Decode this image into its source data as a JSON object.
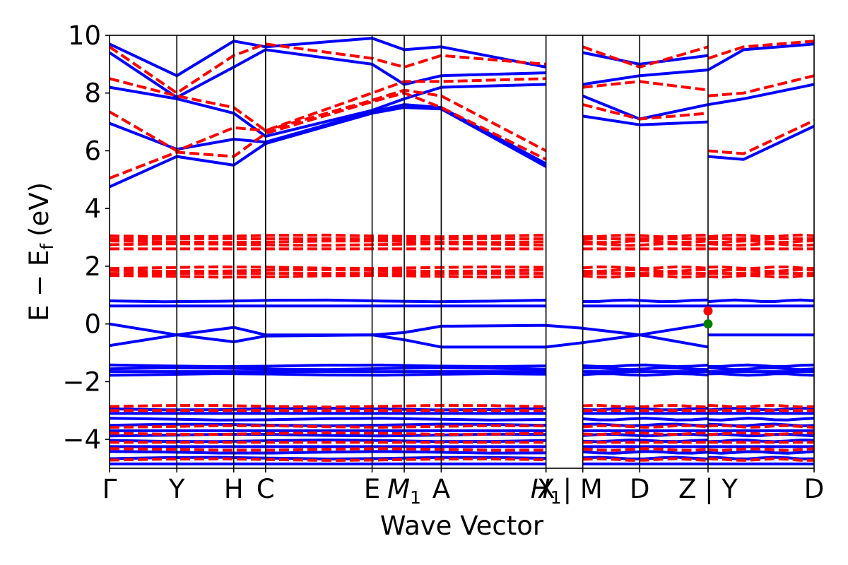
{
  "chart_data": {
    "type": "line",
    "title": "",
    "xlabel": "Wave Vector",
    "ylabel": "E − E_f (eV)",
    "ylabel_parts": {
      "main": "E − E",
      "sub": "f",
      "unit": "(eV)"
    },
    "ylim": [
      -5,
      10
    ],
    "yticks": [
      "−4",
      "−2",
      "0",
      "2",
      "4",
      "6",
      "8",
      "10"
    ],
    "ytick_values": [
      -4,
      -2,
      0,
      2,
      4,
      6,
      8,
      10
    ],
    "xlim": [
      0,
      1
    ],
    "kpoints": [
      {
        "label": "Γ",
        "x": 0.0
      },
      {
        "label": "Y",
        "x": 0.0955
      },
      {
        "label": "H",
        "x": 0.1763
      },
      {
        "label": "C",
        "x": 0.2215
      },
      {
        "label": "E",
        "x": 0.3727
      },
      {
        "label": "M",
        "sub": "1",
        "x": 0.4183
      },
      {
        "label": "A",
        "x": 0.4708
      },
      {
        "label": "X",
        "x": 0.6195
      },
      {
        "label": "H",
        "sub": "1",
        "x": 0.6195
      },
      {
        "label": "| M",
        "x": 0.6717
      },
      {
        "label": "D",
        "x": 0.7525
      },
      {
        "label": "Z | Y",
        "x": 0.8495
      },
      {
        "label": "D",
        "x": 1.0
      }
    ],
    "special_points": [
      {
        "name": "CBM",
        "x": 0.8495,
        "y": 0.45,
        "color": "#ff0000"
      },
      {
        "name": "VBM",
        "x": 0.8495,
        "y": 0.0,
        "color": "#008000"
      }
    ],
    "series": [
      {
        "spin": "up",
        "color": "#0000ff",
        "style": "solid",
        "flat_bands": [
          0.8,
          0.62,
          -1.45,
          -1.55,
          -1.65,
          -1.75,
          -2.95,
          -3.1,
          -3.3,
          -3.5,
          -3.7,
          -3.85,
          -4.05,
          -4.25,
          -4.45,
          -4.65,
          -4.85
        ],
        "dispersive_bands": [
          {
            "x": [
              0.0,
              0.0955,
              0.1763,
              0.2215,
              0.3727,
              0.4183,
              0.4708,
              0.6195
            ],
            "y": [
              4.75,
              5.8,
              5.5,
              6.25,
              7.3,
              7.5,
              7.45,
              5.45
            ]
          },
          {
            "x": [
              0.0,
              0.0955,
              0.1763,
              0.2215,
              0.3727,
              0.4183,
              0.4708,
              0.6195
            ],
            "y": [
              6.95,
              6.05,
              6.4,
              6.3,
              7.35,
              7.6,
              7.5,
              5.55
            ]
          },
          {
            "x": [
              0.0,
              0.0955,
              0.1763,
              0.2215,
              0.3727,
              0.4183,
              0.4708,
              0.6195
            ],
            "y": [
              8.2,
              7.8,
              7.3,
              6.5,
              7.4,
              7.8,
              8.2,
              8.3
            ]
          },
          {
            "x": [
              0.0,
              0.0955,
              0.1763,
              0.2215,
              0.3727,
              0.4183,
              0.4708,
              0.6195
            ],
            "y": [
              9.4,
              7.85,
              8.9,
              9.5,
              9.0,
              8.3,
              8.6,
              8.7
            ]
          },
          {
            "x": [
              0.0,
              0.0955,
              0.1763,
              0.2215,
              0.3727,
              0.4183,
              0.4708,
              0.6195
            ],
            "y": [
              9.7,
              8.6,
              9.8,
              9.6,
              9.9,
              9.5,
              9.6,
              8.9
            ]
          },
          {
            "x": [
              0.6717,
              0.7525,
              0.8495
            ],
            "y": [
              7.2,
              6.9,
              7.0
            ]
          },
          {
            "x": [
              0.6717,
              0.7525,
              0.8495
            ],
            "y": [
              7.9,
              7.1,
              7.6
            ]
          },
          {
            "x": [
              0.6717,
              0.7525,
              0.8495
            ],
            "y": [
              8.3,
              8.6,
              8.8
            ]
          },
          {
            "x": [
              0.6717,
              0.7525,
              0.8495
            ],
            "y": [
              9.4,
              9.0,
              9.3
            ]
          },
          {
            "x": [
              0.8495,
              0.9,
              1.0
            ],
            "y": [
              5.8,
              5.7,
              6.85
            ]
          },
          {
            "x": [
              0.8495,
              0.9,
              1.0
            ],
            "y": [
              7.6,
              7.8,
              8.3
            ]
          },
          {
            "x": [
              0.8495,
              0.9,
              1.0
            ],
            "y": [
              8.8,
              9.5,
              9.7
            ]
          },
          {
            "x": [
              0.0,
              0.0955,
              0.1763,
              0.2215,
              0.3727,
              0.4183,
              0.4708,
              0.6195,
              0.6717,
              0.7525,
              0.8495
            ],
            "y": [
              0.0,
              -0.38,
              -0.12,
              -0.38,
              -0.38,
              -0.3,
              -0.08,
              -0.05,
              -0.15,
              -0.38,
              0.0
            ]
          },
          {
            "x": [
              0.0,
              0.0955,
              0.1763,
              0.2215,
              0.3727,
              0.4183,
              0.4708,
              0.6195,
              0.6717,
              0.7525,
              0.8495
            ],
            "y": [
              -0.75,
              -0.38,
              -0.62,
              -0.42,
              -0.38,
              -0.55,
              -0.8,
              -0.8,
              -0.65,
              -0.38,
              -0.8
            ]
          },
          {
            "x": [
              0.8495,
              1.0
            ],
            "y": [
              -0.38,
              -0.38
            ]
          }
        ]
      },
      {
        "spin": "down",
        "color": "#ff0000",
        "style": "dashed",
        "flat_bands": [
          3.05,
          2.95,
          2.85,
          2.75,
          2.6,
          1.95,
          1.85,
          1.75,
          1.65,
          -2.85,
          -3.0,
          -3.55,
          -3.8,
          -4.1,
          -4.35,
          -4.7
        ],
        "dispersive_bands": [
          {
            "x": [
              0.0,
              0.0955,
              0.1763,
              0.2215,
              0.3727,
              0.4183,
              0.4708,
              0.6195
            ],
            "y": [
              5.05,
              5.95,
              5.8,
              6.6,
              7.7,
              8.0,
              7.5,
              5.7
            ]
          },
          {
            "x": [
              0.0,
              0.0955,
              0.1763,
              0.2215,
              0.3727,
              0.4183,
              0.4708,
              0.6195
            ],
            "y": [
              7.35,
              6.0,
              6.8,
              6.7,
              7.75,
              8.1,
              7.9,
              6.0
            ]
          },
          {
            "x": [
              0.0,
              0.0955,
              0.1763,
              0.2215,
              0.3727,
              0.4183,
              0.4708,
              0.6195
            ],
            "y": [
              8.5,
              7.9,
              7.5,
              6.7,
              8.0,
              8.4,
              8.4,
              8.5
            ]
          },
          {
            "x": [
              0.0,
              0.0955,
              0.1763,
              0.2215,
              0.3727,
              0.4183,
              0.4708,
              0.6195
            ],
            "y": [
              9.6,
              8.0,
              9.3,
              9.7,
              9.2,
              8.9,
              9.3,
              9.0
            ]
          },
          {
            "x": [
              0.6717,
              0.7525,
              0.8495
            ],
            "y": [
              7.6,
              7.1,
              7.3
            ]
          },
          {
            "x": [
              0.6717,
              0.7525,
              0.8495
            ],
            "y": [
              8.2,
              8.4,
              8.1
            ]
          },
          {
            "x": [
              0.6717,
              0.7525,
              0.8495
            ],
            "y": [
              9.6,
              8.9,
              9.6
            ]
          },
          {
            "x": [
              0.8495,
              0.9,
              1.0
            ],
            "y": [
              6.0,
              5.9,
              7.05
            ]
          },
          {
            "x": [
              0.8495,
              0.9,
              1.0
            ],
            "y": [
              7.9,
              8.0,
              8.6
            ]
          },
          {
            "x": [
              0.8495,
              0.9,
              1.0
            ],
            "y": [
              9.2,
              9.6,
              9.8
            ]
          }
        ]
      }
    ]
  }
}
